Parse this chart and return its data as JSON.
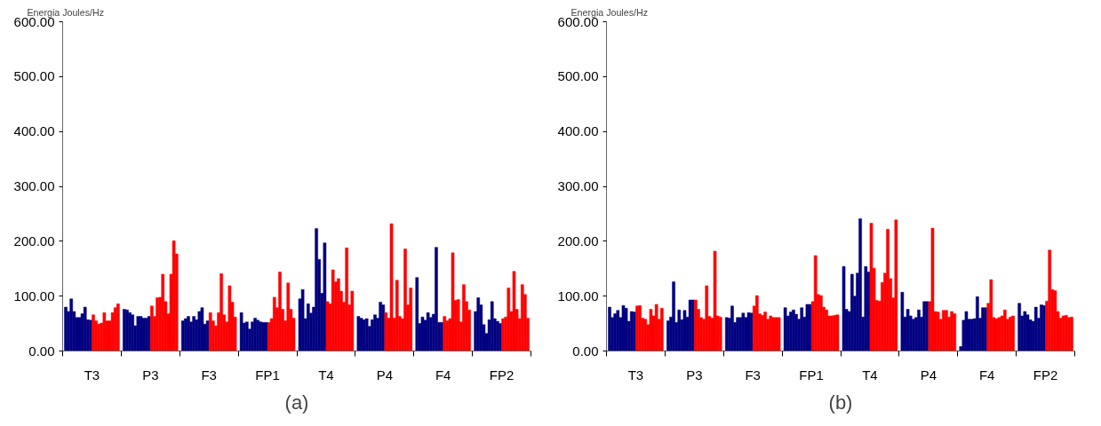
{
  "chart_data": [
    {
      "type": "bar",
      "ylabel": "Energia Joules/Hz",
      "annotations": [
        "(a)"
      ],
      "categories": [
        "T3",
        "P3",
        "F3",
        "FP1",
        "T4",
        "P4",
        "F4",
        "FP2"
      ],
      "ylim": [
        0,
        600
      ],
      "yticks": [
        {
          "value": 0,
          "label": "0.00"
        },
        {
          "value": 100,
          "label": "100.00"
        },
        {
          "value": 200,
          "label": "200.00"
        },
        {
          "value": 300,
          "label": "300.00"
        },
        {
          "value": 400,
          "label": "400.00"
        },
        {
          "value": 500,
          "label": "500.00"
        },
        {
          "value": 600,
          "label": "600.00"
        }
      ],
      "grid": false,
      "series": [
        {
          "color": "#000080",
          "values": [
            80,
            76,
            55,
            70,
            95,
            63,
            134,
            72
          ]
        },
        {
          "color": "#000080",
          "values": [
            72,
            75,
            59,
            51,
            112,
            60,
            50,
            97
          ]
        },
        {
          "color": "#000080",
          "values": [
            95,
            70,
            63,
            53,
            59,
            57,
            62,
            84
          ]
        },
        {
          "color": "#000080",
          "values": [
            72,
            66,
            53,
            40,
            86,
            59,
            56,
            48
          ]
        },
        {
          "color": "#000080",
          "values": [
            61,
            46,
            63,
            53,
            69,
            45,
            70,
            32
          ]
        },
        {
          "color": "#000080",
          "values": [
            61,
            63,
            57,
            60,
            80,
            57,
            61,
            57
          ]
        },
        {
          "color": "#000080",
          "values": [
            68,
            63,
            72,
            56,
            223,
            66,
            67,
            90
          ]
        },
        {
          "color": "#000080",
          "values": [
            80,
            60,
            79,
            53,
            167,
            60,
            189,
            59
          ]
        },
        {
          "color": "#000080",
          "values": [
            57,
            60,
            49,
            52,
            105,
            89,
            52,
            54
          ]
        },
        {
          "color": "#000080",
          "values": [
            56,
            63,
            55,
            52,
            197,
            84,
            52,
            50
          ]
        },
        {
          "color": "#ff0000",
          "values": [
            66,
            82,
            70,
            52,
            90,
            70,
            63,
            59
          ]
        },
        {
          "color": "#ff0000",
          "values": [
            55,
            63,
            55,
            59,
            86,
            60,
            55,
            62
          ]
        },
        {
          "color": "#ff0000",
          "values": [
            49,
            97,
            46,
            98,
            148,
            232,
            59,
            115
          ]
        },
        {
          "color": "#ff0000",
          "values": [
            51,
            98,
            70,
            79,
            126,
            60,
            179,
            72
          ]
        },
        {
          "color": "#ff0000",
          "values": [
            70,
            140,
            141,
            144,
            132,
            129,
            92,
            145
          ]
        },
        {
          "color": "#ff0000",
          "values": [
            55,
            90,
            66,
            76,
            109,
            63,
            94,
            76
          ]
        },
        {
          "color": "#ff0000",
          "values": [
            55,
            68,
            53,
            55,
            89,
            59,
            53,
            59
          ]
        },
        {
          "color": "#ff0000",
          "values": [
            70,
            140,
            119,
            124,
            188,
            186,
            121,
            121
          ]
        },
        {
          "color": "#ff0000",
          "values": [
            79,
            201,
            89,
            76,
            84,
            84,
            90,
            103
          ]
        },
        {
          "color": "#ff0000",
          "values": [
            86,
            177,
            62,
            60,
            109,
            115,
            75,
            60
          ]
        }
      ]
    },
    {
      "type": "bar",
      "ylabel": "Energia Joules/Hz",
      "annotations": [
        "(b)"
      ],
      "categories": [
        "T3",
        "P3",
        "F3",
        "FP1",
        "T4",
        "P4",
        "F4",
        "FP2"
      ],
      "ylim": [
        0,
        600
      ],
      "yticks": [
        {
          "value": 0,
          "label": "0.00"
        },
        {
          "value": 100,
          "label": "100.00"
        },
        {
          "value": 200,
          "label": "200.00"
        },
        {
          "value": 300,
          "label": "300.00"
        },
        {
          "value": 400,
          "label": "400.00"
        },
        {
          "value": 500,
          "label": "500.00"
        },
        {
          "value": 600,
          "label": "600.00"
        }
      ],
      "grid": false,
      "series": [
        {
          "color": "#000080",
          "values": [
            80,
            55,
            61,
            79,
            154,
            107,
            8,
            87
          ]
        },
        {
          "color": "#000080",
          "values": [
            61,
            62,
            60,
            64,
            76,
            62,
            56,
            64
          ]
        },
        {
          "color": "#000080",
          "values": [
            68,
            126,
            82,
            71,
            72,
            76,
            72,
            72
          ]
        },
        {
          "color": "#000080",
          "values": [
            74,
            52,
            52,
            75,
            140,
            64,
            58,
            66
          ]
        },
        {
          "color": "#000080",
          "values": [
            61,
            75,
            61,
            67,
            100,
            58,
            58,
            57
          ]
        },
        {
          "color": "#000080",
          "values": [
            83,
            57,
            61,
            58,
            142,
            61,
            59,
            54
          ]
        },
        {
          "color": "#000080",
          "values": [
            78,
            74,
            69,
            79,
            241,
            75,
            99,
            80
          ]
        },
        {
          "color": "#000080",
          "values": [
            54,
            62,
            61,
            62,
            62,
            62,
            60,
            60
          ]
        },
        {
          "color": "#000080",
          "values": [
            72,
            93,
            70,
            85,
            154,
            90,
            79,
            84
          ]
        },
        {
          "color": "#000080",
          "values": [
            71,
            93,
            69,
            85,
            144,
            90,
            79,
            83
          ]
        },
        {
          "color": "#ff0000",
          "values": [
            82,
            93,
            82,
            90,
            233,
            90,
            87,
            91
          ]
        },
        {
          "color": "#ff0000",
          "values": [
            83,
            76,
            101,
            174,
            151,
            224,
            130,
            184
          ]
        },
        {
          "color": "#ff0000",
          "values": [
            60,
            61,
            68,
            103,
            92,
            72,
            61,
            112
          ]
        },
        {
          "color": "#ff0000",
          "values": [
            58,
            58,
            65,
            101,
            91,
            71,
            59,
            110
          ]
        },
        {
          "color": "#ff0000",
          "values": [
            48,
            119,
            71,
            80,
            125,
            58,
            61,
            72
          ]
        },
        {
          "color": "#ff0000",
          "values": [
            76,
            63,
            58,
            75,
            142,
            74,
            64,
            60
          ]
        },
        {
          "color": "#ff0000",
          "values": [
            64,
            60,
            64,
            64,
            222,
            74,
            75,
            64
          ]
        },
        {
          "color": "#ff0000",
          "values": [
            85,
            182,
            61,
            64,
            132,
            62,
            58,
            65
          ]
        },
        {
          "color": "#ff0000",
          "values": [
            58,
            64,
            61,
            65,
            97,
            72,
            62,
            61
          ]
        },
        {
          "color": "#ff0000",
          "values": [
            78,
            62,
            61,
            66,
            239,
            68,
            64,
            62
          ]
        }
      ]
    }
  ]
}
